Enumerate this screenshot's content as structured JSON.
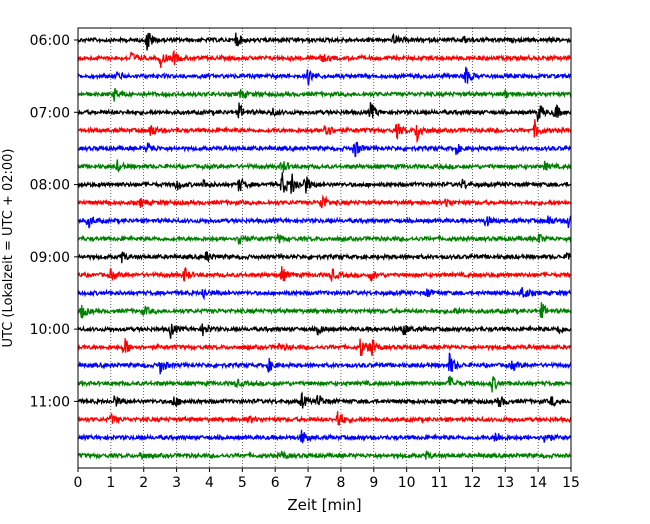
{
  "chart_data": {
    "type": "line",
    "xlabel": "Zeit  [min]",
    "ylabel": "UTC (Lokalzeit = UTC + 02:00)",
    "xlim": [
      0,
      15
    ],
    "x_ticks": [
      0,
      1,
      2,
      3,
      4,
      5,
      6,
      7,
      8,
      9,
      10,
      11,
      12,
      13,
      14,
      15
    ],
    "y_tick_labels": [
      "06:00",
      "07:00",
      "08:00",
      "09:00",
      "10:00",
      "11:00"
    ],
    "y_tick_rows": [
      0,
      4,
      8,
      12,
      16,
      20
    ],
    "grid": "vertical dotted at each minute",
    "row_colors": [
      "#000000",
      "#ff0000",
      "#0000ff",
      "#008000"
    ],
    "rows": [
      {
        "start": "06:00",
        "events": [
          [
            2.1,
            1.0
          ],
          [
            4.8,
            0.6
          ],
          [
            9.6,
            0.4
          ],
          [
            11.7,
            0.3
          ]
        ]
      },
      {
        "start": "06:15",
        "events": [
          [
            1.6,
            0.5
          ],
          [
            2.5,
            0.7
          ],
          [
            2.9,
            0.5
          ],
          [
            7.4,
            0.3
          ]
        ]
      },
      {
        "start": "06:30",
        "events": [
          [
            7.0,
            0.6
          ],
          [
            11.75,
            1.0
          ],
          [
            1.2,
            0.3
          ]
        ]
      },
      {
        "start": "06:45",
        "events": [
          [
            1.1,
            0.5
          ],
          [
            4.9,
            0.4
          ],
          [
            13.0,
            0.3
          ]
        ]
      },
      {
        "start": "07:00",
        "events": [
          [
            4.9,
            0.6
          ],
          [
            8.9,
            0.7
          ],
          [
            14.0,
            0.8
          ],
          [
            14.5,
            0.7
          ],
          [
            5.9,
            0.3
          ]
        ]
      },
      {
        "start": "07:15",
        "events": [
          [
            2.2,
            0.6
          ],
          [
            7.5,
            0.9
          ],
          [
            9.7,
            0.6
          ],
          [
            10.3,
            1.0
          ],
          [
            13.9,
            0.7
          ]
        ]
      },
      {
        "start": "07:30",
        "events": [
          [
            2.1,
            0.5
          ],
          [
            8.4,
            0.8
          ],
          [
            11.5,
            0.4
          ]
        ]
      },
      {
        "start": "07:45",
        "events": [
          [
            1.2,
            0.4
          ],
          [
            6.2,
            0.6
          ],
          [
            14.2,
            0.3
          ]
        ]
      },
      {
        "start": "08:00",
        "events": [
          [
            3.0,
            0.5
          ],
          [
            3.8,
            0.4
          ],
          [
            4.9,
            0.6
          ],
          [
            6.2,
            1.0
          ],
          [
            6.5,
            0.9
          ],
          [
            6.9,
            0.8
          ],
          [
            11.7,
            0.4
          ]
        ]
      },
      {
        "start": "08:15",
        "events": [
          [
            1.9,
            0.3
          ],
          [
            7.4,
            0.8
          ],
          [
            11.2,
            0.3
          ]
        ]
      },
      {
        "start": "08:30",
        "events": [
          [
            0.3,
            0.6
          ],
          [
            12.4,
            0.5
          ],
          [
            14.9,
            0.6
          ],
          [
            14.3,
            0.4
          ]
        ]
      },
      {
        "start": "08:45",
        "events": [
          [
            4.9,
            0.6
          ],
          [
            6.1,
            0.3
          ],
          [
            14.0,
            0.4
          ]
        ]
      },
      {
        "start": "09:00",
        "events": [
          [
            1.3,
            0.5
          ],
          [
            3.9,
            0.4
          ],
          [
            14.9,
            0.5
          ]
        ]
      },
      {
        "start": "09:15",
        "events": [
          [
            1.0,
            0.4
          ],
          [
            3.2,
            0.7
          ],
          [
            6.2,
            0.6
          ],
          [
            7.7,
            0.5
          ],
          [
            8.9,
            0.4
          ]
        ]
      },
      {
        "start": "09:30",
        "events": [
          [
            3.8,
            0.5
          ],
          [
            10.6,
            0.4
          ],
          [
            13.5,
            0.7
          ]
        ]
      },
      {
        "start": "09:45",
        "events": [
          [
            0.1,
            0.6
          ],
          [
            2.0,
            0.4
          ],
          [
            14.1,
            0.6
          ],
          [
            11.4,
            0.3
          ]
        ]
      },
      {
        "start": "10:00",
        "events": [
          [
            2.8,
            0.7
          ],
          [
            3.8,
            0.5
          ],
          [
            7.3,
            0.4
          ],
          [
            9.9,
            0.5
          ],
          [
            14.6,
            0.4
          ]
        ]
      },
      {
        "start": "10:15",
        "events": [
          [
            1.4,
            0.8
          ],
          [
            8.6,
            0.8
          ],
          [
            8.9,
            0.7
          ],
          [
            6.1,
            0.3
          ]
        ]
      },
      {
        "start": "10:30",
        "events": [
          [
            2.5,
            0.6
          ],
          [
            5.8,
            0.5
          ],
          [
            11.3,
            0.9
          ],
          [
            13.2,
            0.4
          ]
        ]
      },
      {
        "start": "10:45",
        "events": [
          [
            4.8,
            0.3
          ],
          [
            11.3,
            0.6
          ],
          [
            12.6,
            0.6
          ]
        ]
      },
      {
        "start": "11:00",
        "events": [
          [
            1.1,
            0.5
          ],
          [
            2.9,
            0.5
          ],
          [
            6.8,
            0.6
          ],
          [
            7.3,
            0.6
          ],
          [
            12.8,
            0.5
          ],
          [
            14.4,
            0.4
          ]
        ]
      },
      {
        "start": "11:15",
        "events": [
          [
            1.0,
            0.4
          ],
          [
            7.9,
            0.9
          ],
          [
            5.2,
            0.3
          ]
        ]
      },
      {
        "start": "11:30",
        "events": [
          [
            6.8,
            0.6
          ],
          [
            12.7,
            0.5
          ],
          [
            14.2,
            0.6
          ]
        ]
      },
      {
        "start": "11:45",
        "events": [
          [
            1.9,
            0.3
          ],
          [
            6.2,
            0.3
          ],
          [
            10.6,
            0.3
          ]
        ]
      }
    ]
  }
}
